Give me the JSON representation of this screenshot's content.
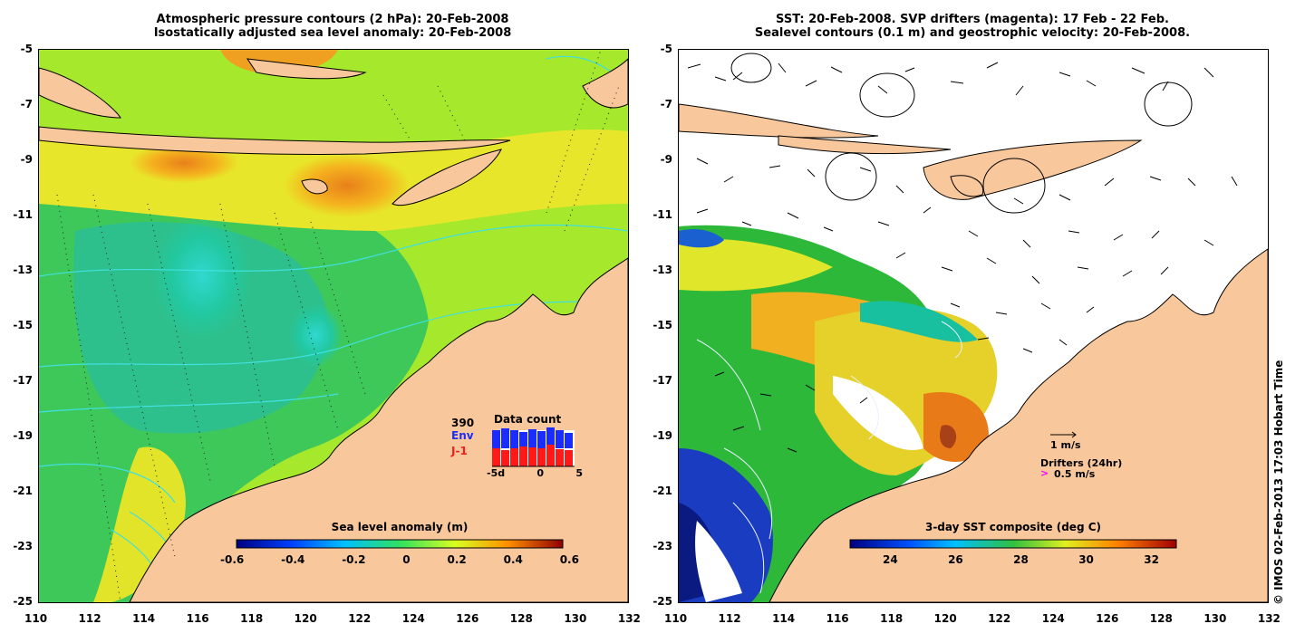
{
  "left_panel": {
    "title_line1": "Atmospheric pressure contours (2 hPa): 20-Feb-2008",
    "title_line2": "Isostatically adjusted sea level anomaly: 20-Feb-2008",
    "colorbar_title": "Sea level anomaly (m)",
    "colorbar_ticks": [
      "-0.6",
      "-0.4",
      "-0.2",
      "0",
      "0.2",
      "0.4",
      "0.6"
    ],
    "inset": {
      "count": "390",
      "env_label": "Env",
      "j1_label": "J-1",
      "title": "Data count",
      "xticks": [
        "-5d",
        "0",
        "5"
      ],
      "env_color": "#1b2cff",
      "j1_color": "#ff1a1a"
    }
  },
  "right_panel": {
    "title_line1": "SST: 20-Feb-2008. SVP drifters (magenta): 17 Feb - 22 Feb.",
    "title_line2": "Sealevel contours (0.1 m) and geostrophic velocity: 20-Feb-2008.",
    "colorbar_title": "3-day SST composite (deg C)",
    "colorbar_ticks": [
      "24",
      "26",
      "28",
      "30",
      "32"
    ],
    "scale_label": "1 m/s",
    "drifters_label": "Drifters (24hr)",
    "drifters_speed": "0.5 m/s",
    "drifter_color": "#ff00ff"
  },
  "axes": {
    "y_ticks": [
      "-5",
      "-7",
      "-9",
      "-11",
      "-13",
      "-15",
      "-17",
      "-19",
      "-21",
      "-23",
      "-25"
    ],
    "x_ticks": [
      "110",
      "112",
      "114",
      "116",
      "118",
      "120",
      "122",
      "124",
      "126",
      "128",
      "130",
      "132"
    ]
  },
  "credit": "© IMOS 02-Feb-2013 17:03 Hobart Time",
  "colors": {
    "land": "#f8c79b",
    "contour": "#40e0e0",
    "sla_background": "#8ee02a"
  }
}
